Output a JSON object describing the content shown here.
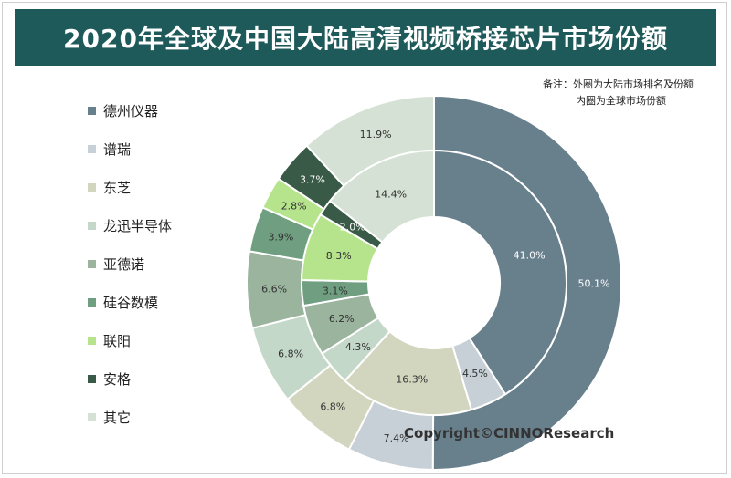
{
  "title": "2020年全球及中国大陆高清视频桥接芯片市场份额",
  "note": {
    "line1": "备注：外圈为大陆市场排名及份额",
    "line2": "内圈为全球市场份额"
  },
  "copyright": "Copyright©CINNOResearch",
  "chart_data": {
    "type": "donut",
    "categories": [
      "德州仪器",
      "谱瑞",
      "东芝",
      "龙迅半导体",
      "亚德诺",
      "硅谷数模",
      "联阳",
      "安格",
      "其它"
    ],
    "colors": [
      "#687f8c",
      "#c7d0d6",
      "#d3d6bf",
      "#c4d8c9",
      "#9bb49e",
      "#6f9f80",
      "#b6e48c",
      "#3a5a48",
      "#d4e1d4"
    ],
    "series": [
      {
        "ring": "outer",
        "values": [
          50.1,
          7.4,
          6.8,
          6.8,
          6.6,
          3.9,
          2.8,
          3.7,
          11.9
        ],
        "labels": [
          "50.1%",
          "7.4%",
          "6.8%",
          "6.8%",
          "6.6%",
          "3.9%",
          "2.8%",
          "3.7%",
          "11.9%"
        ]
      },
      {
        "ring": "inner",
        "values": [
          41.0,
          4.5,
          16.3,
          4.3,
          6.2,
          3.1,
          8.3,
          2.0,
          14.4
        ],
        "labels": [
          "41.0%",
          "4.5%",
          "16.3%",
          "4.3%",
          "6.2%",
          "3.1%",
          "8.3%",
          "2.0%",
          "14.4%"
        ]
      }
    ]
  }
}
